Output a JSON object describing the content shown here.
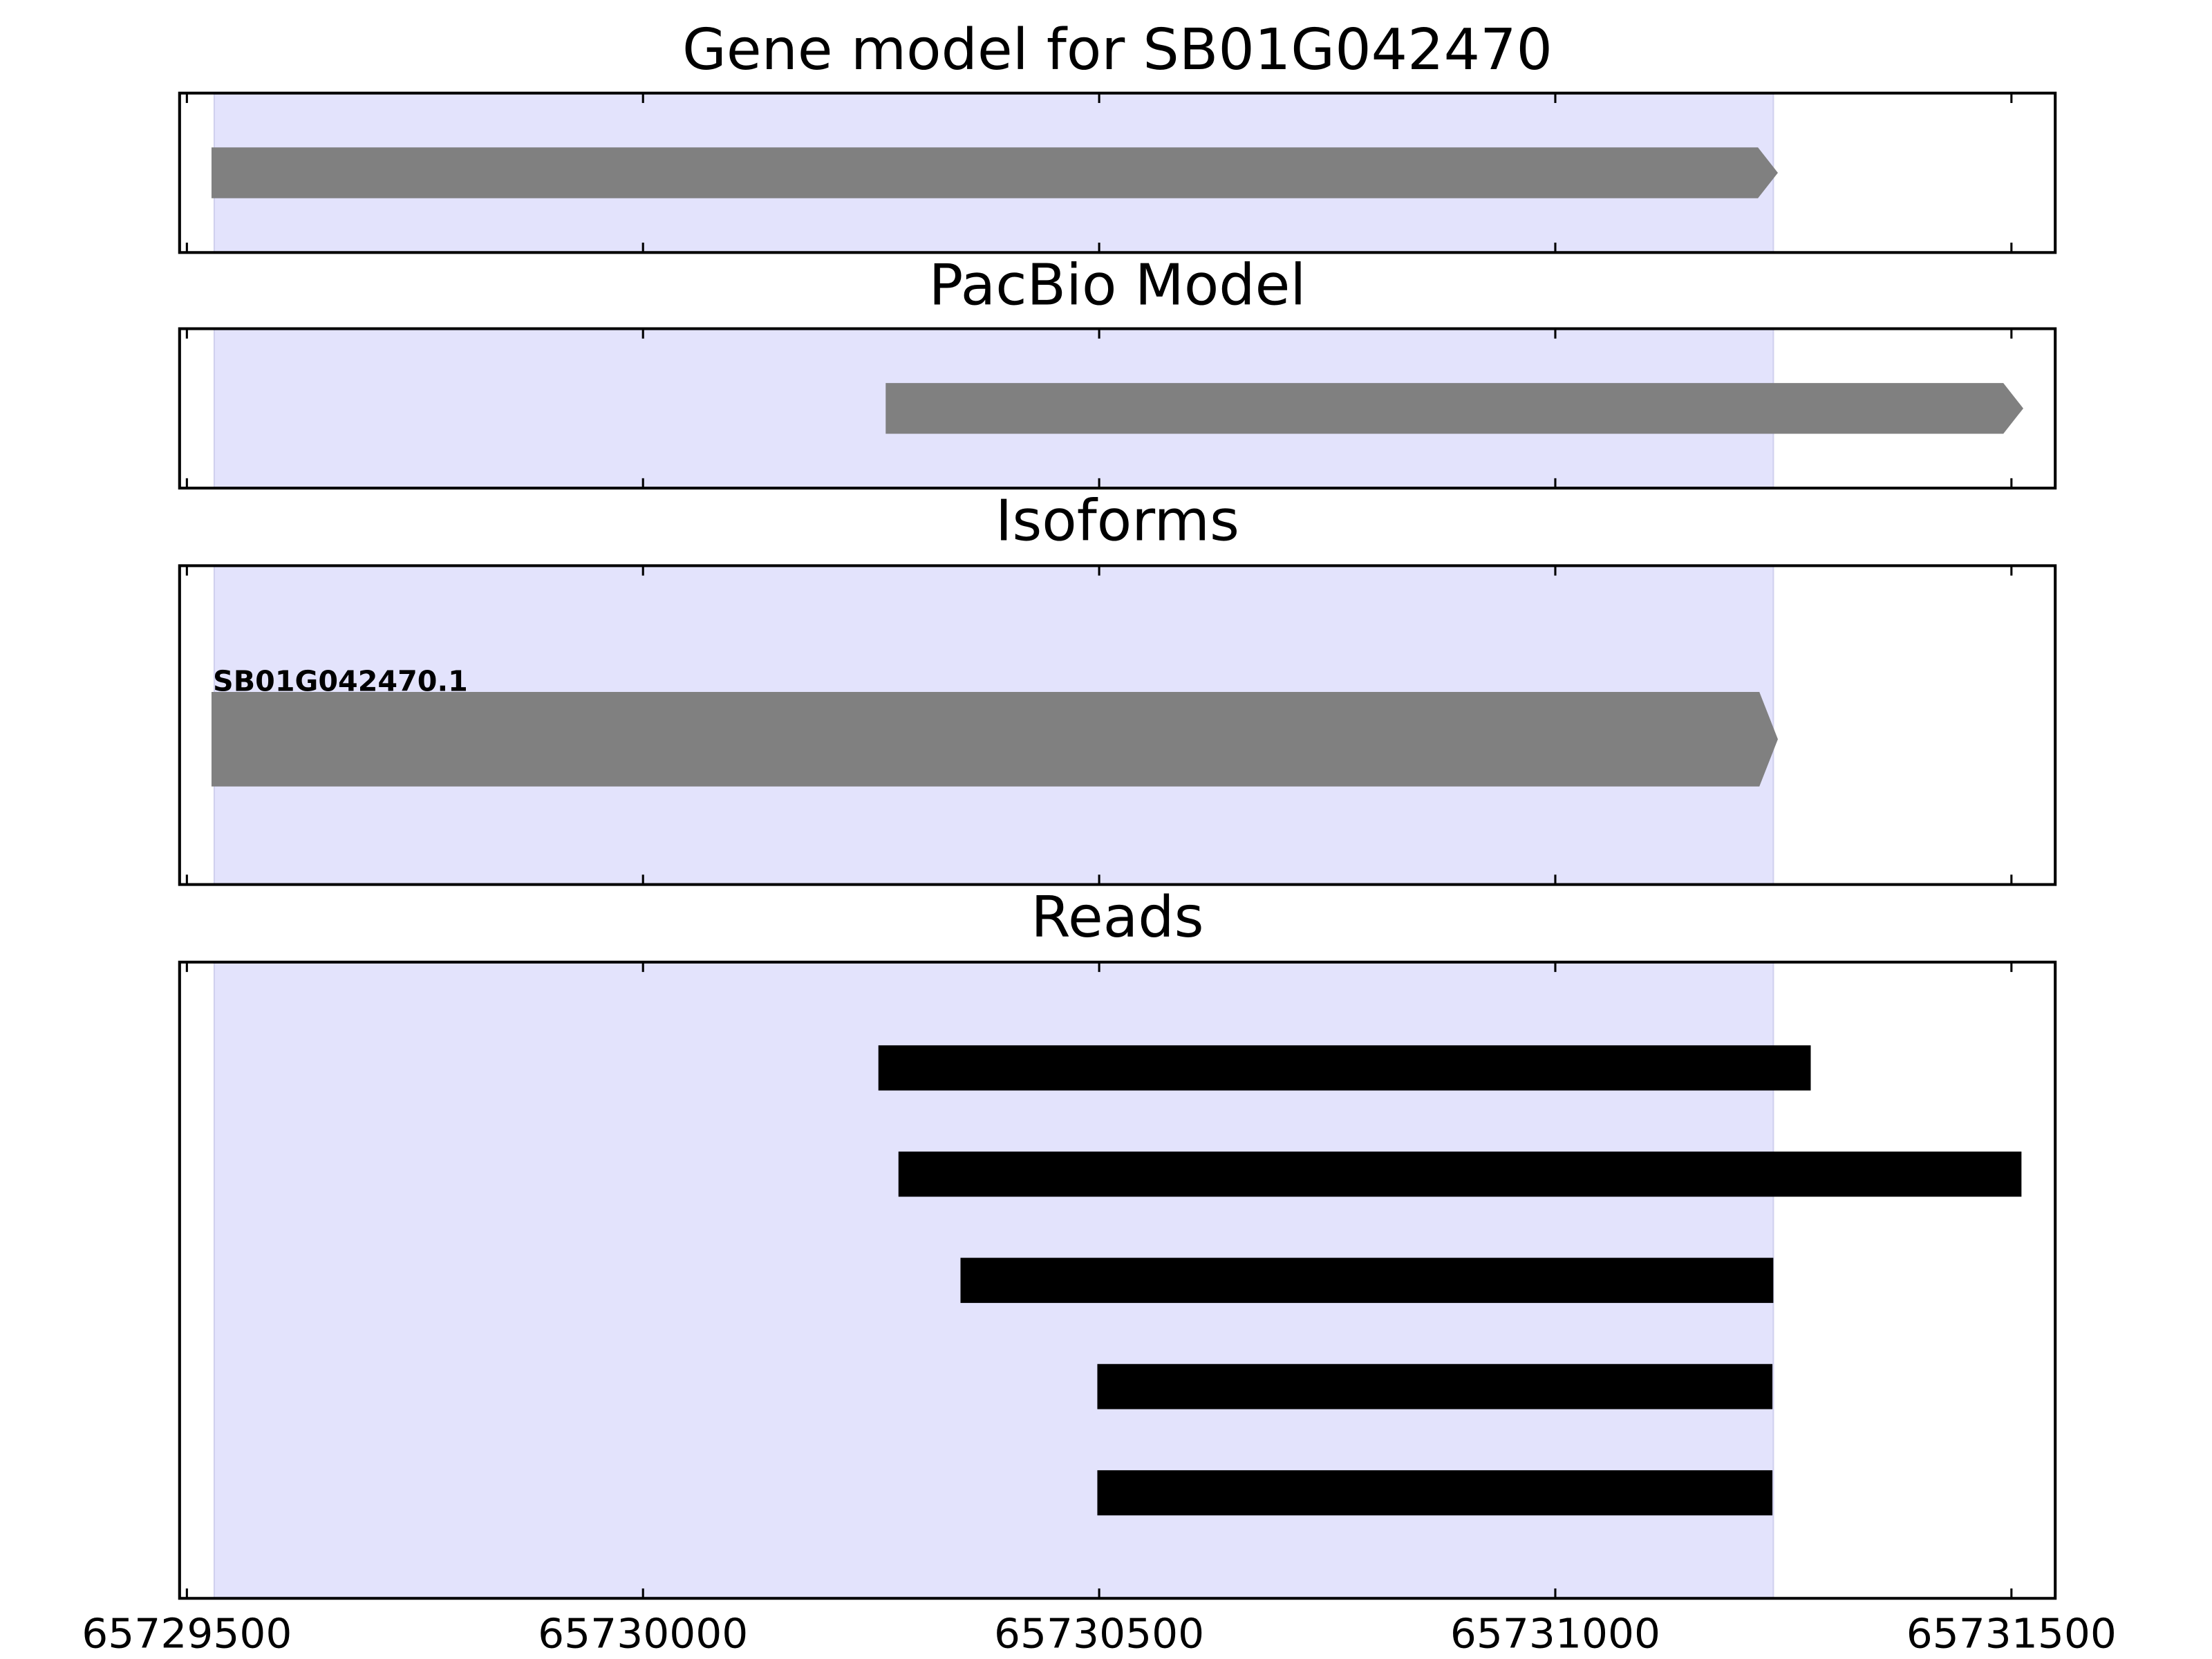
{
  "chart_data": [
    {
      "type": "gene-track",
      "title": "Gene model for SB01G042470",
      "xlim": [
        65729492,
        65731548
      ],
      "xticks": [
        65729500,
        65730000,
        65730500,
        65731000,
        65731500
      ],
      "highlight": [
        65729530,
        65731239
      ],
      "color": "#808080",
      "features": [
        {
          "start": 65729527,
          "end": 65731244
        }
      ]
    },
    {
      "type": "gene-track",
      "title": "PacBio Model",
      "xlim": [
        65729492,
        65731548
      ],
      "xticks": [
        65729500,
        65730000,
        65730500,
        65731000,
        65731500
      ],
      "highlight": [
        65729530,
        65731239
      ],
      "color": "#808080",
      "features": [
        {
          "start": 65730266,
          "end": 65731513
        }
      ]
    },
    {
      "type": "gene-track",
      "title": "Isoforms",
      "xlim": [
        65729492,
        65731548
      ],
      "xticks": [
        65729500,
        65730000,
        65730500,
        65731000,
        65731500
      ],
      "highlight": [
        65729530,
        65731239
      ],
      "color": "#808080",
      "features": [
        {
          "name": "SB01G042470.1",
          "start": 65729527,
          "end": 65731244
        }
      ]
    },
    {
      "type": "reads",
      "title": "Reads",
      "xlim": [
        65729492,
        65731548
      ],
      "xticks": [
        65729500,
        65730000,
        65730500,
        65731000,
        65731500
      ],
      "highlight": [
        65729530,
        65731239
      ],
      "color": "#000000",
      "features": [
        {
          "start": 65730258,
          "end": 65731280
        },
        {
          "start": 65730280,
          "end": 65731511
        },
        {
          "start": 65730348,
          "end": 65731239
        },
        {
          "start": 65730498,
          "end": 65731238
        },
        {
          "start": 65730498,
          "end": 65731238
        }
      ]
    }
  ]
}
